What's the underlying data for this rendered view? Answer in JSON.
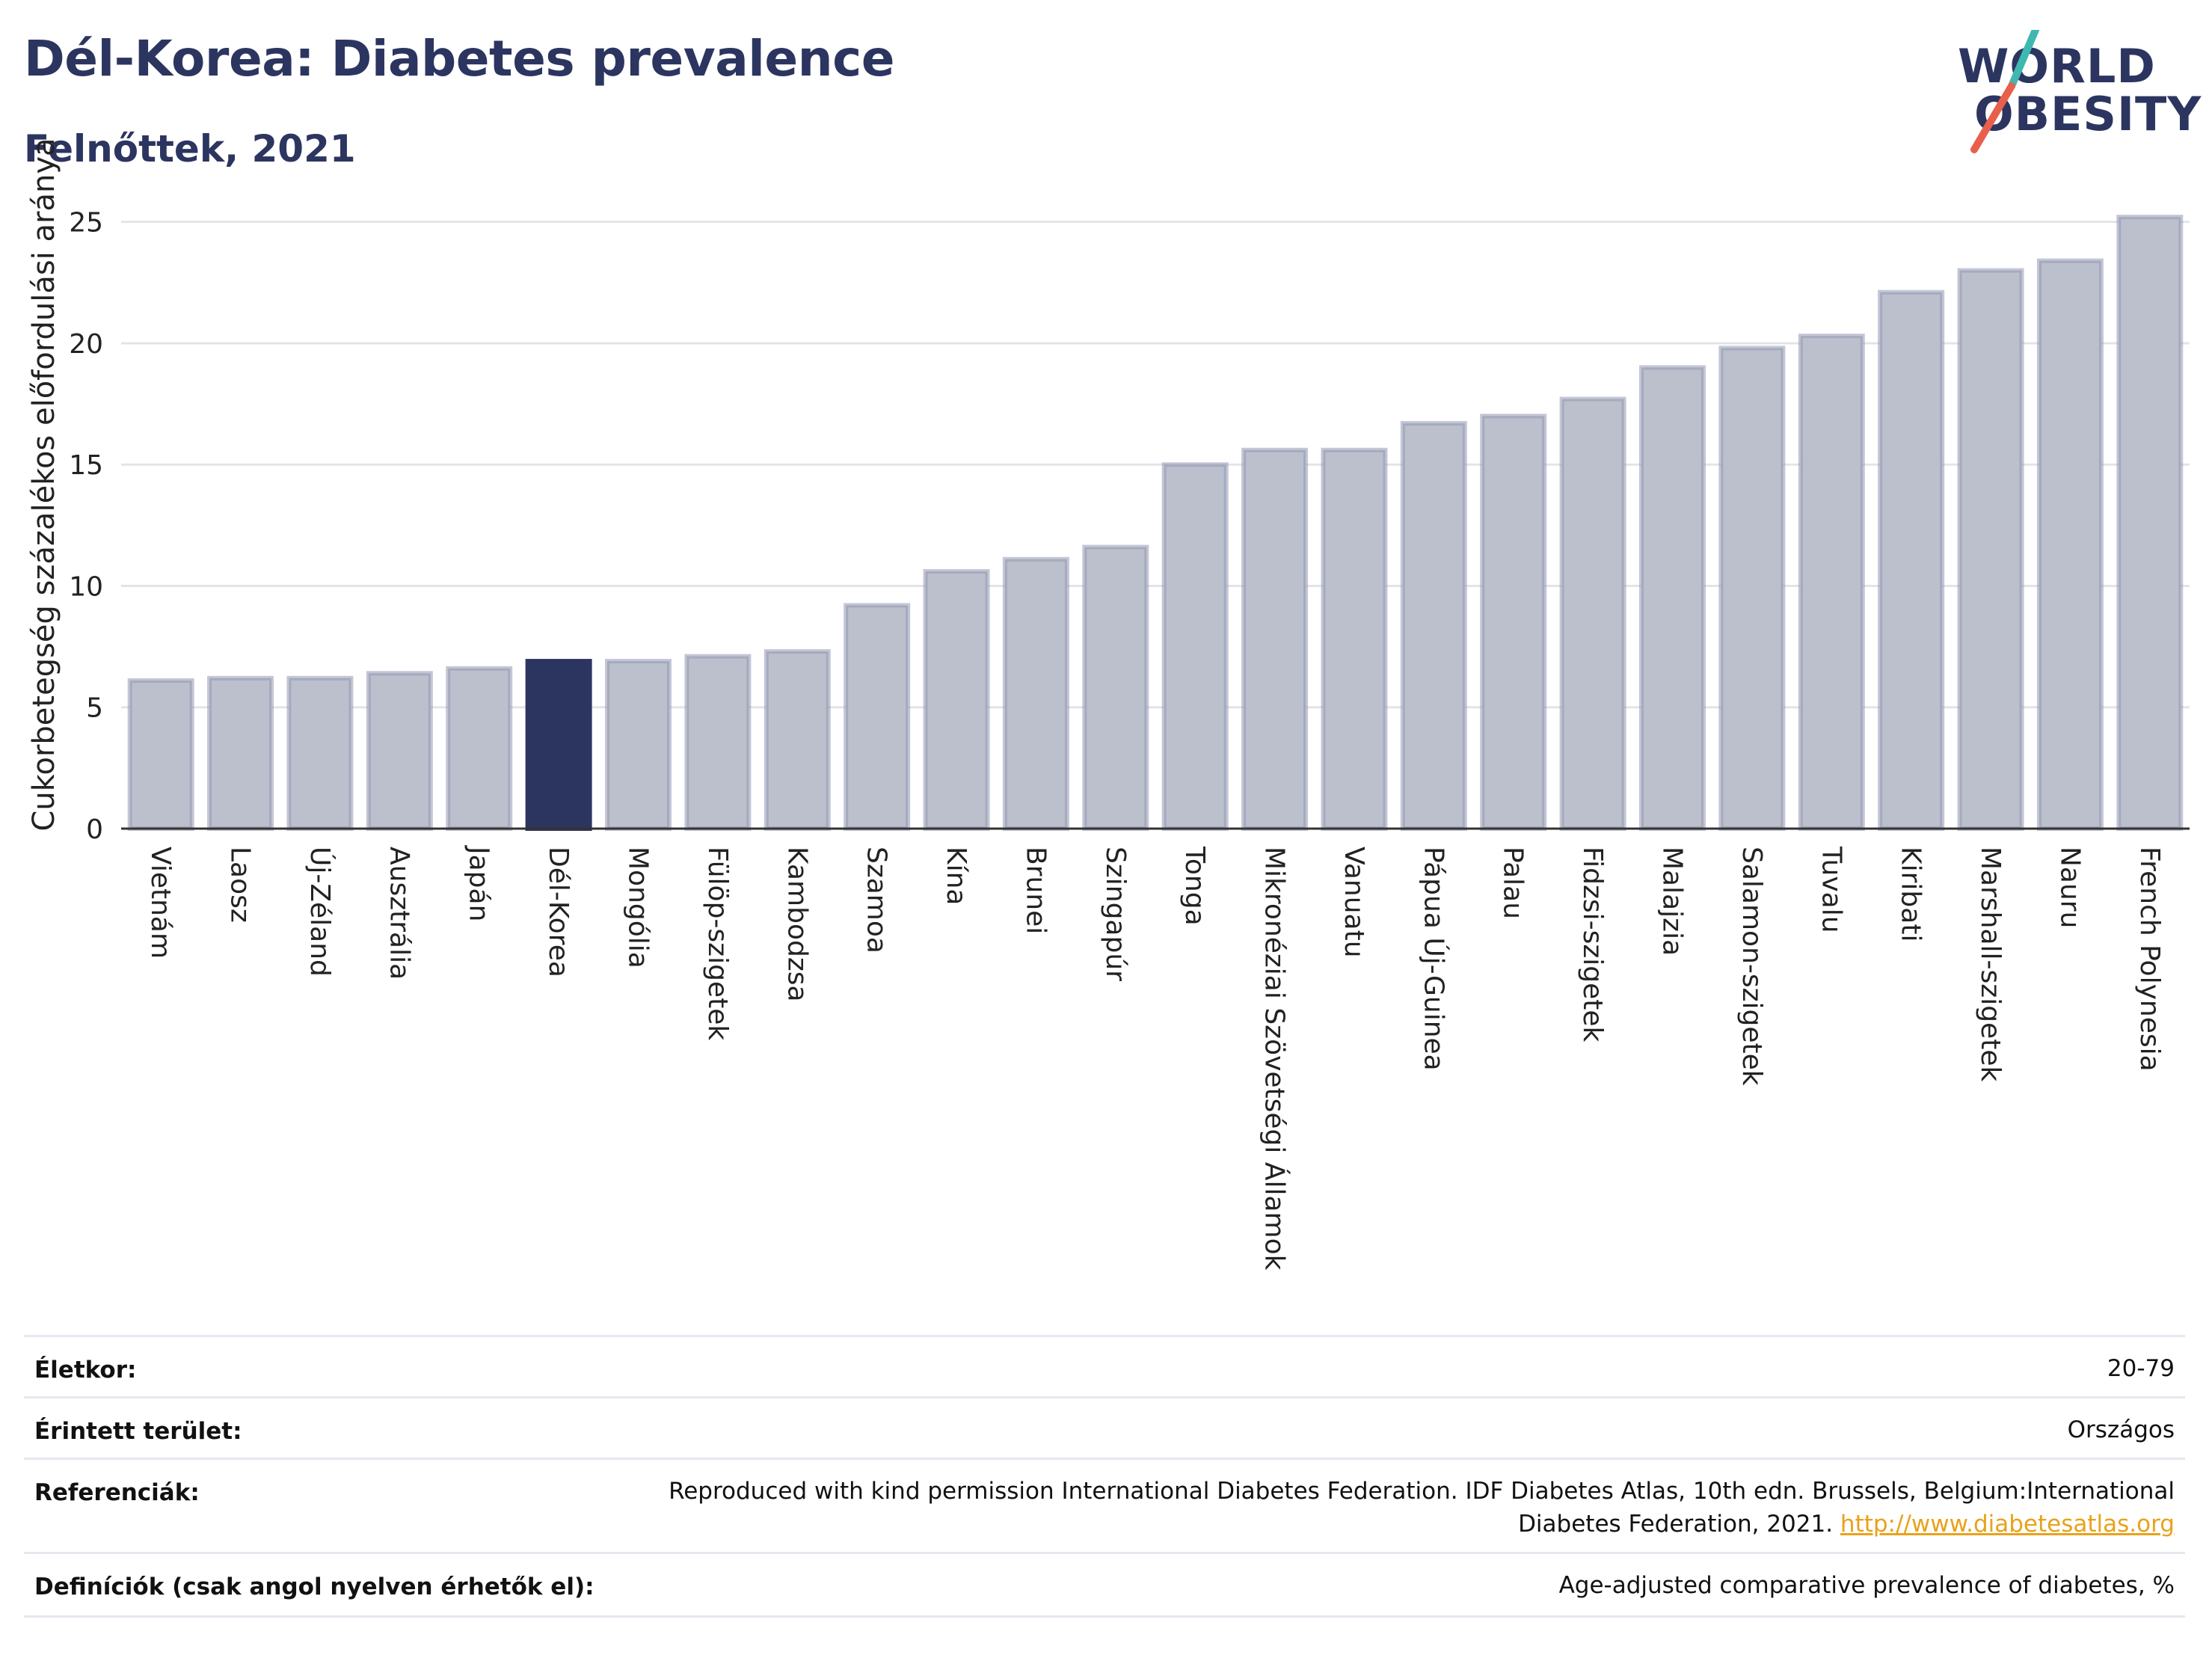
{
  "header": {
    "title": "Dél-Korea: Diabetes prevalence",
    "subtitle": "Felnőttek, 2021"
  },
  "logo": {
    "line1": "WORLD",
    "line2": "OBESITY",
    "icon": "world-obesity-logo",
    "slash_colors": [
      "#3fb8b0",
      "#e8604c"
    ]
  },
  "colors": {
    "bar": "#bcc0cd",
    "bar_border": "#9297b3",
    "highlight": "#2c3560",
    "grid": "#e3e4ea",
    "axis": "#333333"
  },
  "chart_data": {
    "type": "bar",
    "title": "Dél-Korea: Diabetes prevalence",
    "subtitle": "Felnőttek, 2021",
    "xlabel": "",
    "ylabel": "Cukorbetegség százalékos előfordulási aránya",
    "ylim": [
      0,
      26.5
    ],
    "yticks": [
      0,
      5,
      10,
      15,
      20,
      25
    ],
    "grid": "horizontal",
    "highlight_category": "Dél-Korea",
    "categories": [
      "Vietnám",
      "Laosz",
      "Új-Zéland",
      "Ausztrália",
      "Japán",
      "Dél-Korea",
      "Mongólia",
      "Fülöp-szigetek",
      "Kambodzsa",
      "Szamoa",
      "Kína",
      "Brunei",
      "Szingapúr",
      "Tonga",
      "Mikronéziai Szövetségi Államok",
      "Vanuatu",
      "Pápua Új-Guinea",
      "Palau",
      "Fidzsi-szigetek",
      "Malajzia",
      "Salamon-szigetek",
      "Tuvalu",
      "Kiribati",
      "Marshall-szigetek",
      "Nauru",
      "French Polynesia"
    ],
    "values": [
      6.1,
      6.2,
      6.2,
      6.4,
      6.6,
      6.9,
      6.9,
      7.1,
      7.3,
      9.2,
      10.6,
      11.1,
      11.6,
      15.0,
      15.6,
      15.6,
      16.7,
      17.0,
      17.7,
      19.0,
      19.8,
      20.3,
      22.1,
      23.0,
      23.4,
      25.2
    ]
  },
  "details": [
    {
      "label": "Életkor:",
      "value": "20-79"
    },
    {
      "label": "Érintett terület:",
      "value": "Országos"
    },
    {
      "label": "Referenciák:",
      "value": "Reproduced with kind permission International Diabetes Federation.  IDF Diabetes Atlas, 10th edn. Brussels, Belgium:International Diabetes Federation, 2021.",
      "link": "http://www.diabetesatlas.org"
    },
    {
      "label": "Definíciók (csak angol nyelven érhetők el):",
      "value": "Age-adjusted comparative prevalence of diabetes, %"
    }
  ]
}
